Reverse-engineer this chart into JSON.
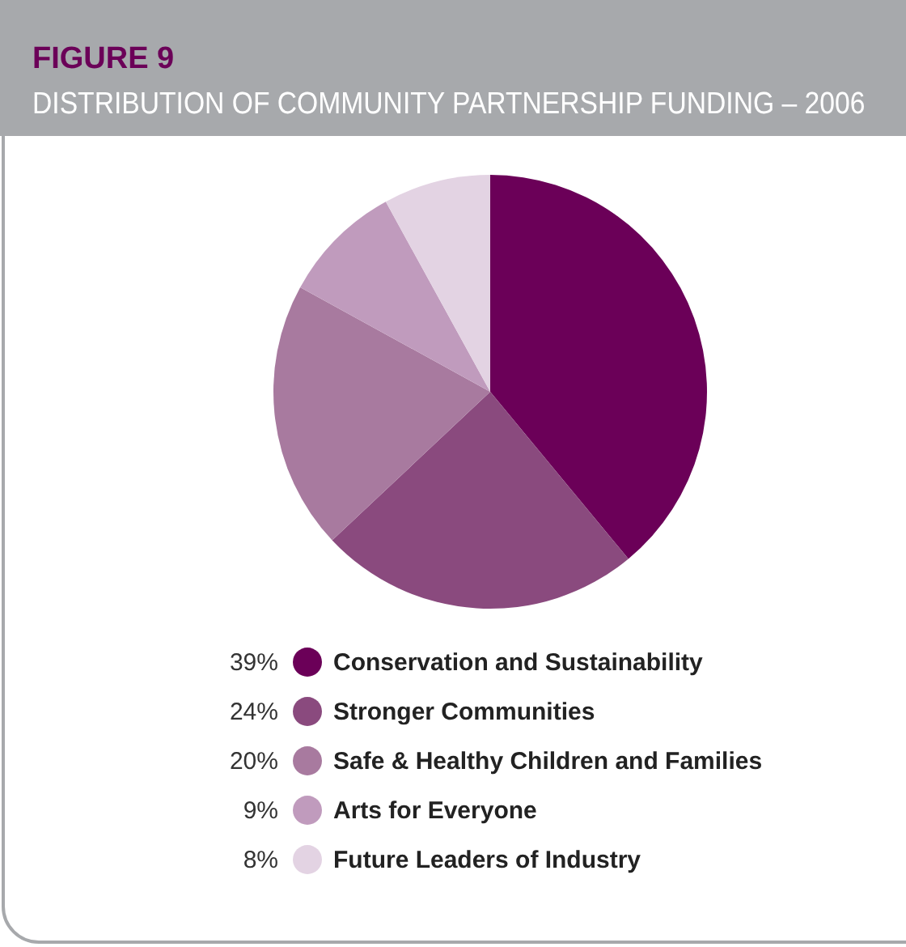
{
  "chart_data": {
    "type": "pie",
    "title": "FIGURE 9",
    "subtitle": "DISTRIBUTION OF COMMUNITY PARTNERSHIP FUNDING – 2006",
    "categories": [
      "Conservation and Sustainability",
      "Stronger Communities",
      "Safe & Healthy Children and Families",
      "Arts for Everyone",
      "Future Leaders of Industry"
    ],
    "values": [
      39,
      24,
      20,
      9,
      8
    ],
    "colors": [
      "#6b0058",
      "#8a4a7e",
      "#a87a9f",
      "#c09bbd",
      "#e3d3e3"
    ],
    "value_labels": [
      "39%",
      "24%",
      "20%",
      "9%",
      "8%"
    ],
    "data_labels": true,
    "legend": "bottom"
  }
}
